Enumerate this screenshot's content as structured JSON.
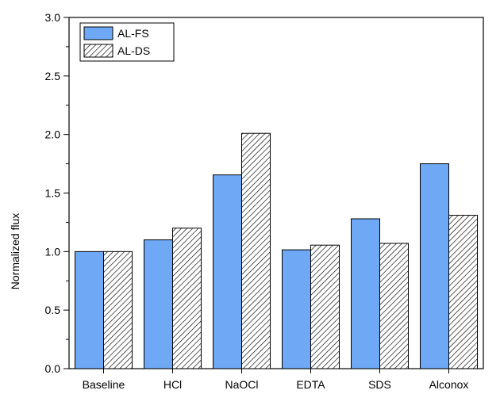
{
  "chart_data": {
    "type": "bar",
    "title": "",
    "xlabel": "",
    "ylabel": "Normalized flux",
    "ylim": [
      0,
      3.0
    ],
    "yticks": [
      "0.0",
      "0.5",
      "1.0",
      "1.5",
      "2.0",
      "2.5",
      "3.0"
    ],
    "categories": [
      "Baseline",
      "HCl",
      "NaOCl",
      "EDTA",
      "SDS",
      "Alconox"
    ],
    "series": [
      {
        "name": "AL-FS",
        "values": [
          1.0,
          1.1,
          1.655,
          1.015,
          1.28,
          1.75
        ],
        "fill": "#6fa8f5",
        "pattern": "solid"
      },
      {
        "name": "AL-DS",
        "values": [
          1.0,
          1.2,
          2.01,
          1.055,
          1.07,
          1.31
        ],
        "fill": "#ffffff",
        "pattern": "diagonal-hatch"
      }
    ],
    "grid": false,
    "legend_position": "top-left"
  }
}
